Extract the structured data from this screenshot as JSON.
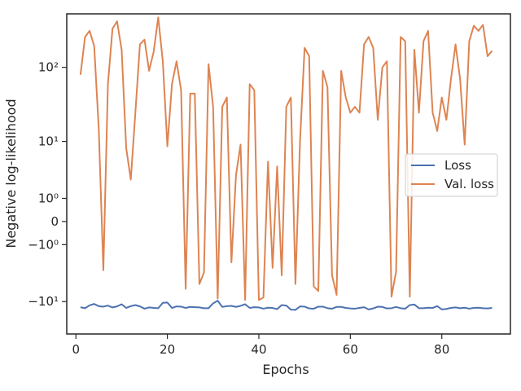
{
  "chart_data": {
    "type": "line",
    "title": "",
    "xlabel": "Epochs",
    "ylabel": "Negative log-likelihood",
    "xlim": [
      -2,
      95
    ],
    "ylim": [
      -28,
      500
    ],
    "yscale": "symlog",
    "grid": false,
    "legend_placement": "center-right",
    "x_ticks": [
      0,
      20,
      40,
      60,
      80
    ],
    "x_tick_labels": [
      "0",
      "20",
      "40",
      "60",
      "80"
    ],
    "y_ticks": [
      -10,
      -1,
      0,
      1,
      10,
      100
    ],
    "y_tick_labels": [
      "−10¹",
      "−10⁰",
      "0",
      "10⁰",
      "10¹",
      "10²"
    ],
    "x": [
      1,
      2,
      3,
      4,
      5,
      6,
      7,
      8,
      9,
      10,
      11,
      12,
      13,
      14,
      15,
      16,
      17,
      18,
      19,
      20,
      21,
      22,
      23,
      24,
      25,
      26,
      27,
      28,
      29,
      30,
      31,
      32,
      33,
      34,
      35,
      36,
      37,
      38,
      39,
      40,
      41,
      42,
      43,
      44,
      45,
      46,
      47,
      48,
      49,
      50,
      51,
      52,
      53,
      54,
      55,
      56,
      57,
      58,
      59,
      60,
      61,
      62,
      63,
      64,
      65,
      66,
      67,
      68,
      69,
      70,
      71,
      72,
      73,
      74,
      75,
      76,
      77,
      78,
      79,
      80,
      81,
      82,
      83,
      84,
      85,
      86,
      87,
      88,
      89,
      90,
      91
    ],
    "series": [
      {
        "name": "Loss",
        "color": "#4c72b0",
        "values": [
          -12.0,
          -12.4,
          -11.3,
          -10.8,
          -11.6,
          -11.8,
          -11.4,
          -12.1,
          -11.7,
          -10.9,
          -12.3,
          -11.6,
          -11.2,
          -11.7,
          -12.6,
          -12.1,
          -12.3,
          -12.4,
          -10.4,
          -10.3,
          -12.3,
          -11.7,
          -11.8,
          -12.3,
          -11.9,
          -12.0,
          -12.1,
          -12.4,
          -12.4,
          -10.6,
          -9.7,
          -11.9,
          -11.6,
          -11.5,
          -11.9,
          -11.5,
          -10.9,
          -12.3,
          -12.0,
          -12.1,
          -12.6,
          -12.2,
          -12.3,
          -12.8,
          -11.2,
          -11.4,
          -13.0,
          -13.1,
          -11.7,
          -11.8,
          -12.5,
          -12.6,
          -11.8,
          -11.8,
          -12.4,
          -12.6,
          -11.9,
          -11.9,
          -12.3,
          -12.5,
          -12.6,
          -12.3,
          -12.0,
          -12.9,
          -12.5,
          -11.8,
          -11.9,
          -12.5,
          -12.4,
          -11.9,
          -12.4,
          -12.6,
          -11.2,
          -11.0,
          -12.4,
          -12.4,
          -12.2,
          -12.3,
          -11.6,
          -12.9,
          -12.7,
          -12.3,
          -12.1,
          -12.4,
          -12.2,
          -12.6,
          -12.3,
          -12.2,
          -12.4,
          -12.5,
          -12.3
        ]
      },
      {
        "name": "Val. loss",
        "color": "#dd8452",
        "values": [
          80,
          250,
          300,
          190,
          15,
          -3.3,
          60,
          320,
          400,
          170,
          8,
          2.5,
          25,
          200,
          230,
          90,
          160,
          450,
          120,
          8.5,
          60,
          120,
          50,
          -6.5,
          45,
          45,
          -5.5,
          -3.6,
          110,
          30,
          -9,
          30,
          40,
          -2.4,
          3,
          9,
          -9.5,
          60,
          50,
          -9.5,
          -8.7,
          5,
          -3,
          4.2,
          -4,
          30,
          40,
          -5.5,
          10,
          180,
          140,
          -6,
          -7,
          90,
          55,
          -4,
          -8,
          90,
          40,
          25,
          30,
          25,
          200,
          250,
          180,
          20,
          100,
          120,
          -8.5,
          -3.5,
          250,
          220,
          -8.5,
          170,
          25,
          220,
          300,
          25,
          14,
          40,
          20,
          70,
          200,
          70,
          9,
          220,
          350,
          300,
          360,
          140,
          165
        ]
      }
    ]
  }
}
